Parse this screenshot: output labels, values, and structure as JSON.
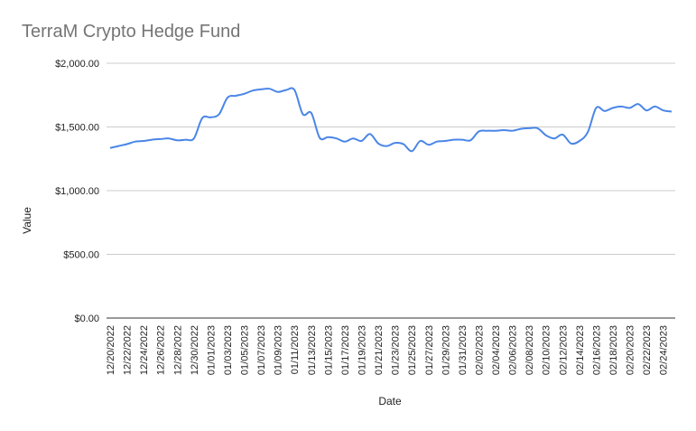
{
  "chart_data": {
    "type": "line",
    "title": "TerraM Crypto Hedge Fund",
    "xlabel": "Date",
    "ylabel": "Value",
    "ylim": [
      0,
      2000
    ],
    "yticks": [
      "$0.00",
      "$500.00",
      "$1,000.00",
      "$1,500.00",
      "$2,000.00"
    ],
    "xtick_labels": [
      "12/20/2022",
      "12/22/2022",
      "12/24/2022",
      "12/26/2022",
      "12/28/2022",
      "12/30/2022",
      "01/01/2023",
      "01/03/2023",
      "01/05/2023",
      "01/07/2023",
      "01/09/2023",
      "01/11/2023",
      "01/13/2023",
      "01/15/2023",
      "01/17/2023",
      "01/19/2023",
      "01/21/2023",
      "01/23/2023",
      "01/25/2023",
      "01/27/2023",
      "01/29/2023",
      "01/31/2023",
      "02/02/2023",
      "02/04/2023",
      "02/06/2023",
      "02/08/2023",
      "02/10/2023",
      "02/12/2023",
      "02/14/2023",
      "02/16/2023",
      "02/18/2023",
      "02/20/2023",
      "02/22/2023",
      "02/24/2023"
    ],
    "grid": true,
    "line_color": "#4a86e8",
    "series": [
      {
        "x": [
          "12/20/2022",
          "12/21/2022",
          "12/22/2022",
          "12/23/2022",
          "12/24/2022",
          "12/25/2022",
          "12/26/2022",
          "12/27/2022",
          "12/28/2022",
          "12/29/2022",
          "12/30/2022",
          "12/31/2022",
          "01/01/2023",
          "01/02/2023",
          "01/03/2023",
          "01/04/2023",
          "01/05/2023",
          "01/06/2023",
          "01/07/2023",
          "01/08/2023",
          "01/09/2023",
          "01/10/2023",
          "01/11/2023",
          "01/12/2023",
          "01/13/2023",
          "01/14/2023",
          "01/15/2023",
          "01/16/2023",
          "01/17/2023",
          "01/18/2023",
          "01/19/2023",
          "01/20/2023",
          "01/21/2023",
          "01/22/2023",
          "01/23/2023",
          "01/24/2023",
          "01/25/2023",
          "01/26/2023",
          "01/27/2023",
          "01/28/2023",
          "01/29/2023",
          "01/30/2023",
          "01/31/2023",
          "02/01/2023",
          "02/02/2023",
          "02/03/2023",
          "02/04/2023",
          "02/05/2023",
          "02/06/2023",
          "02/07/2023",
          "02/08/2023",
          "02/09/2023",
          "02/10/2023",
          "02/11/2023",
          "02/12/2023",
          "02/13/2023",
          "02/14/2023",
          "02/15/2023",
          "02/16/2023",
          "02/17/2023",
          "02/18/2023",
          "02/19/2023",
          "02/20/2023",
          "02/21/2023",
          "02/22/2023",
          "02/23/2023",
          "02/24/2023",
          "02/25/2023"
        ],
        "values": [
          1335,
          1350,
          1365,
          1385,
          1390,
          1400,
          1405,
          1410,
          1395,
          1400,
          1410,
          1570,
          1575,
          1600,
          1730,
          1745,
          1760,
          1785,
          1795,
          1800,
          1775,
          1790,
          1790,
          1600,
          1610,
          1415,
          1420,
          1410,
          1385,
          1410,
          1390,
          1445,
          1370,
          1350,
          1375,
          1365,
          1310,
          1390,
          1360,
          1385,
          1390,
          1400,
          1400,
          1395,
          1465,
          1470,
          1470,
          1475,
          1470,
          1485,
          1490,
          1490,
          1435,
          1410,
          1440,
          1370,
          1390,
          1460,
          1650,
          1625,
          1650,
          1660,
          1650,
          1680,
          1630,
          1660,
          1630,
          1620
        ]
      }
    ]
  }
}
